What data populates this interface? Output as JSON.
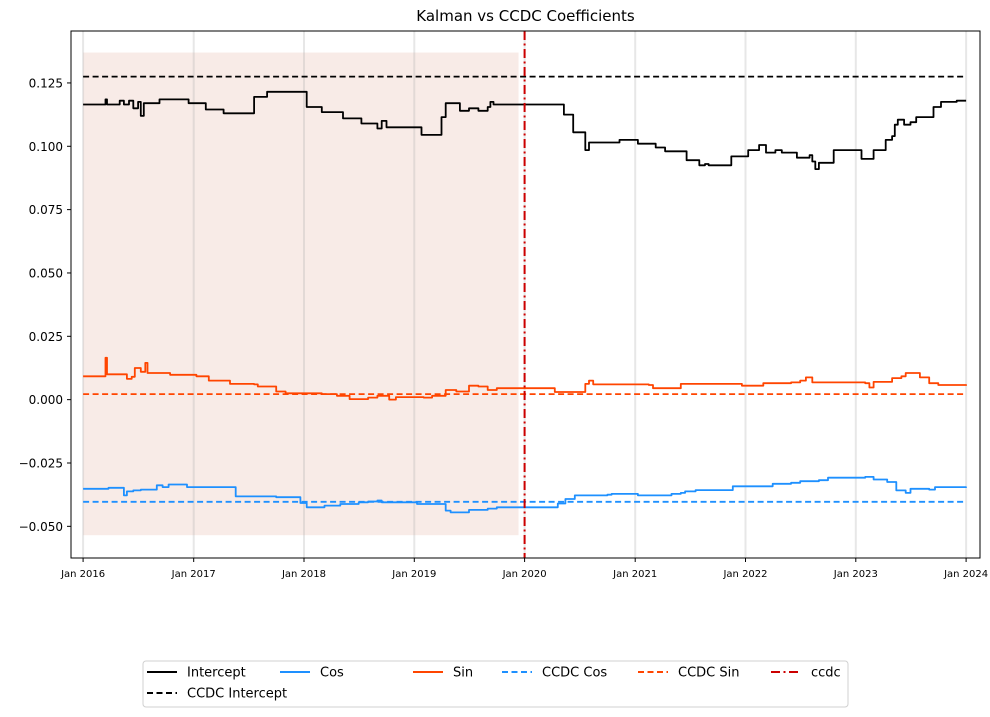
{
  "chart_data": {
    "type": "line",
    "title": "Kalman vs CCDC Coefficients",
    "xlabel": "",
    "ylabel": "",
    "xlim": [
      "2015-11-22",
      "2024-02-16"
    ],
    "ylim": [
      -0.0625,
      0.1455
    ],
    "x_ticks": [
      "Jan 2016",
      "Jan 2017",
      "Jan 2018",
      "Jan 2019",
      "Jan 2020",
      "Jan 2021",
      "Jan 2022",
      "Jan 2023",
      "Jan 2024"
    ],
    "y_ticks": [
      "−0.050",
      "−0.025",
      "0.000",
      "0.025",
      "0.050",
      "0.075",
      "0.100",
      "0.125"
    ],
    "grid": "vertical lines at x ticks",
    "legend": "below plot, centered",
    "shaded_region": {
      "x_start": "2016-01-01",
      "x_end": "2019-12-12",
      "y_range": [
        -0.0535,
        0.137
      ],
      "color": "#f8ebe7"
    },
    "series": [
      {
        "name": "Intercept",
        "style": "solid",
        "color": "#000000",
        "points": [
          [
            "2016-01-01",
            0.1165
          ],
          [
            "2016-03-10",
            0.1165
          ],
          [
            "2016-03-15",
            0.1185
          ],
          [
            "2016-03-20",
            0.1165
          ],
          [
            "2016-04-20",
            0.1165
          ],
          [
            "2016-05-01",
            0.118
          ],
          [
            "2016-05-15",
            0.1165
          ],
          [
            "2016-06-01",
            0.118
          ],
          [
            "2016-06-15",
            0.115
          ],
          [
            "2016-07-01",
            0.1175
          ],
          [
            "2016-07-10",
            0.112
          ],
          [
            "2016-07-20",
            0.117
          ],
          [
            "2016-09-01",
            0.117
          ],
          [
            "2016-09-10",
            0.1185
          ],
          [
            "2016-12-01",
            0.1185
          ],
          [
            "2016-12-15",
            0.117
          ],
          [
            "2017-02-01",
            0.117
          ],
          [
            "2017-02-10",
            0.1145
          ],
          [
            "2017-04-01",
            0.1145
          ],
          [
            "2017-04-10",
            0.113
          ],
          [
            "2017-07-15",
            0.113
          ],
          [
            "2017-07-20",
            0.1195
          ],
          [
            "2017-08-20",
            0.1195
          ],
          [
            "2017-09-01",
            0.1215
          ],
          [
            "2017-12-20",
            0.1215
          ],
          [
            "2018-01-10",
            0.1155
          ],
          [
            "2018-02-20",
            0.1155
          ],
          [
            "2018-03-01",
            0.1135
          ],
          [
            "2018-05-01",
            0.1135
          ],
          [
            "2018-05-10",
            0.111
          ],
          [
            "2018-07-01",
            0.111
          ],
          [
            "2018-07-10",
            0.109
          ],
          [
            "2018-08-20",
            0.109
          ],
          [
            "2018-09-01",
            0.107
          ],
          [
            "2018-09-15",
            0.11
          ],
          [
            "2018-10-01",
            0.1075
          ],
          [
            "2019-01-20",
            0.1075
          ],
          [
            "2019-01-25",
            0.1045
          ],
          [
            "2019-03-20",
            0.1045
          ],
          [
            "2019-04-01",
            0.1115
          ],
          [
            "2019-04-15",
            0.117
          ],
          [
            "2019-05-15",
            0.117
          ],
          [
            "2019-06-01",
            0.114
          ],
          [
            "2019-07-01",
            0.115
          ],
          [
            "2019-08-01",
            0.114
          ],
          [
            "2019-09-01",
            0.1155
          ],
          [
            "2019-09-10",
            0.1175
          ],
          [
            "2019-09-20",
            0.1165
          ],
          [
            "2020-05-01",
            0.1165
          ],
          [
            "2020-05-10",
            0.1125
          ],
          [
            "2020-06-01",
            0.1125
          ],
          [
            "2020-06-10",
            0.1055
          ],
          [
            "2020-07-01",
            0.1055
          ],
          [
            "2020-07-20",
            0.0985
          ],
          [
            "2020-08-01",
            0.1015
          ],
          [
            "2020-11-01",
            0.1015
          ],
          [
            "2020-11-10",
            0.1025
          ],
          [
            "2021-01-01",
            0.1025
          ],
          [
            "2021-01-10",
            0.101
          ],
          [
            "2021-03-01",
            0.101
          ],
          [
            "2021-03-10",
            0.0995
          ],
          [
            "2021-04-01",
            0.0995
          ],
          [
            "2021-04-10",
            0.098
          ],
          [
            "2021-06-10",
            0.098
          ],
          [
            "2021-06-20",
            0.0945
          ],
          [
            "2021-07-20",
            0.0945
          ],
          [
            "2021-08-01",
            0.0925
          ],
          [
            "2021-08-20",
            0.093
          ],
          [
            "2021-09-01",
            0.0925
          ],
          [
            "2021-11-10",
            0.0925
          ],
          [
            "2021-11-15",
            0.096
          ],
          [
            "2022-01-01",
            0.096
          ],
          [
            "2022-01-10",
            0.0985
          ],
          [
            "2022-02-15",
            0.1005
          ],
          [
            "2022-03-01",
            0.1005
          ],
          [
            "2022-03-10",
            0.0975
          ],
          [
            "2022-04-10",
            0.0985
          ],
          [
            "2022-05-01",
            0.0975
          ],
          [
            "2022-06-01",
            0.0975
          ],
          [
            "2022-06-20",
            0.0955
          ],
          [
            "2022-08-01",
            0.0965
          ],
          [
            "2022-08-10",
            0.094
          ],
          [
            "2022-08-20",
            0.091
          ],
          [
            "2022-09-01",
            0.0935
          ],
          [
            "2022-10-15",
            0.0935
          ],
          [
            "2022-10-20",
            0.0985
          ],
          [
            "2023-01-10",
            0.0985
          ],
          [
            "2023-01-20",
            0.095
          ],
          [
            "2023-02-20",
            0.095
          ],
          [
            "2023-03-01",
            0.0985
          ],
          [
            "2023-04-01",
            0.0985
          ],
          [
            "2023-04-10",
            0.1025
          ],
          [
            "2023-05-01",
            0.104
          ],
          [
            "2023-05-10",
            0.1085
          ],
          [
            "2023-05-20",
            0.1105
          ],
          [
            "2023-06-10",
            0.1085
          ],
          [
            "2023-07-01",
            0.1095
          ],
          [
            "2023-07-20",
            0.1115
          ],
          [
            "2023-09-15",
            0.1155
          ],
          [
            "2023-10-10",
            0.1175
          ],
          [
            "2023-12-01",
            0.118
          ],
          [
            "2024-01-01",
            0.118
          ]
        ]
      },
      {
        "name": "Cos",
        "style": "solid",
        "color": "#1e90ff",
        "points": [
          [
            "2016-01-01",
            -0.0352
          ],
          [
            "2016-03-20",
            -0.0352
          ],
          [
            "2016-03-25",
            -0.0348
          ],
          [
            "2016-05-10",
            -0.0348
          ],
          [
            "2016-05-15",
            -0.0378
          ],
          [
            "2016-05-25",
            -0.0362
          ],
          [
            "2016-06-15",
            -0.0358
          ],
          [
            "2016-07-10",
            -0.0355
          ],
          [
            "2016-09-01",
            -0.0338
          ],
          [
            "2016-09-20",
            -0.0345
          ],
          [
            "2016-10-10",
            -0.0335
          ],
          [
            "2016-12-01",
            -0.0335
          ],
          [
            "2016-12-10",
            -0.0345
          ],
          [
            "2017-05-15",
            -0.0345
          ],
          [
            "2017-05-20",
            -0.0382
          ],
          [
            "2017-09-01",
            -0.0382
          ],
          [
            "2017-10-01",
            -0.0385
          ],
          [
            "2017-12-01",
            -0.0385
          ],
          [
            "2017-12-20",
            -0.0408
          ],
          [
            "2018-01-10",
            -0.0425
          ],
          [
            "2018-03-01",
            -0.0425
          ],
          [
            "2018-03-10",
            -0.0418
          ],
          [
            "2018-05-01",
            -0.0412
          ],
          [
            "2018-07-01",
            -0.0405
          ],
          [
            "2018-08-01",
            -0.0402
          ],
          [
            "2018-09-01",
            -0.0398
          ],
          [
            "2018-09-15",
            -0.0405
          ],
          [
            "2019-01-01",
            -0.0405
          ],
          [
            "2019-01-10",
            -0.0412
          ],
          [
            "2019-04-01",
            -0.0412
          ],
          [
            "2019-04-15",
            -0.0438
          ],
          [
            "2019-05-01",
            -0.0445
          ],
          [
            "2019-07-01",
            -0.0435
          ],
          [
            "2019-09-01",
            -0.043
          ],
          [
            "2019-10-01",
            -0.0425
          ],
          [
            "2020-04-01",
            -0.0425
          ],
          [
            "2020-04-20",
            -0.041
          ],
          [
            "2020-05-15",
            -0.0392
          ],
          [
            "2020-06-15",
            -0.0378
          ],
          [
            "2020-10-01",
            -0.0375
          ],
          [
            "2020-10-15",
            -0.0372
          ],
          [
            "2021-01-01",
            -0.0372
          ],
          [
            "2021-01-10",
            -0.0378
          ],
          [
            "2021-05-01",
            -0.0372
          ],
          [
            "2021-06-01",
            -0.0368
          ],
          [
            "2021-06-15",
            -0.0362
          ],
          [
            "2021-07-10",
            -0.0362
          ],
          [
            "2021-07-20",
            -0.0357
          ],
          [
            "2021-11-10",
            -0.0357
          ],
          [
            "2021-11-20",
            -0.0342
          ],
          [
            "2022-04-01",
            -0.0332
          ],
          [
            "2022-06-01",
            -0.0328
          ],
          [
            "2022-07-01",
            -0.0322
          ],
          [
            "2022-09-01",
            -0.0318
          ],
          [
            "2022-10-01",
            -0.0308
          ],
          [
            "2023-02-01",
            -0.0305
          ],
          [
            "2023-03-01",
            -0.0315
          ],
          [
            "2023-04-15",
            -0.0325
          ],
          [
            "2023-05-15",
            -0.0358
          ],
          [
            "2023-06-15",
            -0.0368
          ],
          [
            "2023-07-01",
            -0.0352
          ],
          [
            "2023-09-01",
            -0.0355
          ],
          [
            "2023-09-20",
            -0.0345
          ],
          [
            "2024-01-01",
            -0.0343
          ]
        ]
      },
      {
        "name": "Sin",
        "style": "solid",
        "color": "#ff4500",
        "points": [
          [
            "2016-01-01",
            0.0092
          ],
          [
            "2016-03-10",
            0.0092
          ],
          [
            "2016-03-15",
            0.0165
          ],
          [
            "2016-03-20",
            0.01
          ],
          [
            "2016-05-15",
            0.01
          ],
          [
            "2016-05-25",
            0.0082
          ],
          [
            "2016-06-10",
            0.009
          ],
          [
            "2016-06-20",
            0.0125
          ],
          [
            "2016-07-10",
            0.011
          ],
          [
            "2016-07-25",
            0.0145
          ],
          [
            "2016-08-01",
            0.0105
          ],
          [
            "2016-10-15",
            0.0098
          ],
          [
            "2017-01-10",
            0.0092
          ],
          [
            "2017-02-10",
            0.0092
          ],
          [
            "2017-02-20",
            0.0075
          ],
          [
            "2017-04-20",
            0.0075
          ],
          [
            "2017-05-01",
            0.0062
          ],
          [
            "2017-07-20",
            0.006
          ],
          [
            "2017-08-01",
            0.0052
          ],
          [
            "2017-10-01",
            0.0032
          ],
          [
            "2017-11-01",
            0.0025
          ],
          [
            "2018-03-01",
            0.0022
          ],
          [
            "2018-04-20",
            0.0015
          ],
          [
            "2018-06-01",
            0.0002
          ],
          [
            "2018-08-01",
            0.0008
          ],
          [
            "2018-09-01",
            0.0015
          ],
          [
            "2018-10-10",
            0.0
          ],
          [
            "2018-11-01",
            0.001
          ],
          [
            "2019-02-01",
            0.0008
          ],
          [
            "2019-03-01",
            0.0015
          ],
          [
            "2019-04-15",
            0.0038
          ],
          [
            "2019-05-20",
            0.0032
          ],
          [
            "2019-07-01",
            0.0055
          ],
          [
            "2019-08-01",
            0.0052
          ],
          [
            "2019-09-01",
            0.0038
          ],
          [
            "2019-10-01",
            0.0045
          ],
          [
            "2020-04-01",
            0.0045
          ],
          [
            "2020-04-10",
            0.003
          ],
          [
            "2020-07-01",
            0.003
          ],
          [
            "2020-07-20",
            0.0062
          ],
          [
            "2020-08-01",
            0.0075
          ],
          [
            "2020-08-15",
            0.006
          ],
          [
            "2021-02-15",
            0.0058
          ],
          [
            "2021-03-01",
            0.0045
          ],
          [
            "2021-05-15",
            0.0045
          ],
          [
            "2021-06-01",
            0.0062
          ],
          [
            "2021-12-10",
            0.0062
          ],
          [
            "2021-12-20",
            0.0055
          ],
          [
            "2022-03-01",
            0.0065
          ],
          [
            "2022-06-01",
            0.0068
          ],
          [
            "2022-07-01",
            0.0075
          ],
          [
            "2022-07-20",
            0.0088
          ],
          [
            "2022-08-10",
            0.0068
          ],
          [
            "2023-02-01",
            0.0065
          ],
          [
            "2023-02-15",
            0.0048
          ],
          [
            "2023-03-01",
            0.007
          ],
          [
            "2023-05-01",
            0.0085
          ],
          [
            "2023-06-01",
            0.0092
          ],
          [
            "2023-06-15",
            0.0105
          ],
          [
            "2023-08-01",
            0.0088
          ],
          [
            "2023-09-01",
            0.0065
          ],
          [
            "2023-10-01",
            0.0058
          ],
          [
            "2024-01-01",
            0.0055
          ]
        ]
      },
      {
        "name": "CCDC Intercept",
        "style": "dashed",
        "color": "#000000",
        "points": [
          [
            "2016-01-01",
            0.1275
          ],
          [
            "2024-01-01",
            0.1275
          ]
        ]
      },
      {
        "name": "CCDC Cos",
        "style": "dashed",
        "color": "#1e90ff",
        "points": [
          [
            "2016-01-01",
            -0.0403
          ],
          [
            "2024-01-01",
            -0.0403
          ]
        ]
      },
      {
        "name": "CCDC Sin",
        "style": "dashed",
        "color": "#ff4500",
        "points": [
          [
            "2016-01-01",
            0.0022
          ],
          [
            "2024-01-01",
            0.0022
          ]
        ]
      }
    ],
    "vline": {
      "name": "ccdc",
      "x": "2020-01-01",
      "style": "dashdot",
      "color": "#cc0000"
    },
    "legend_order": [
      "Intercept",
      "CCDC Intercept",
      "Cos",
      "Sin",
      "CCDC Cos",
      "CCDC Sin",
      "ccdc"
    ]
  }
}
